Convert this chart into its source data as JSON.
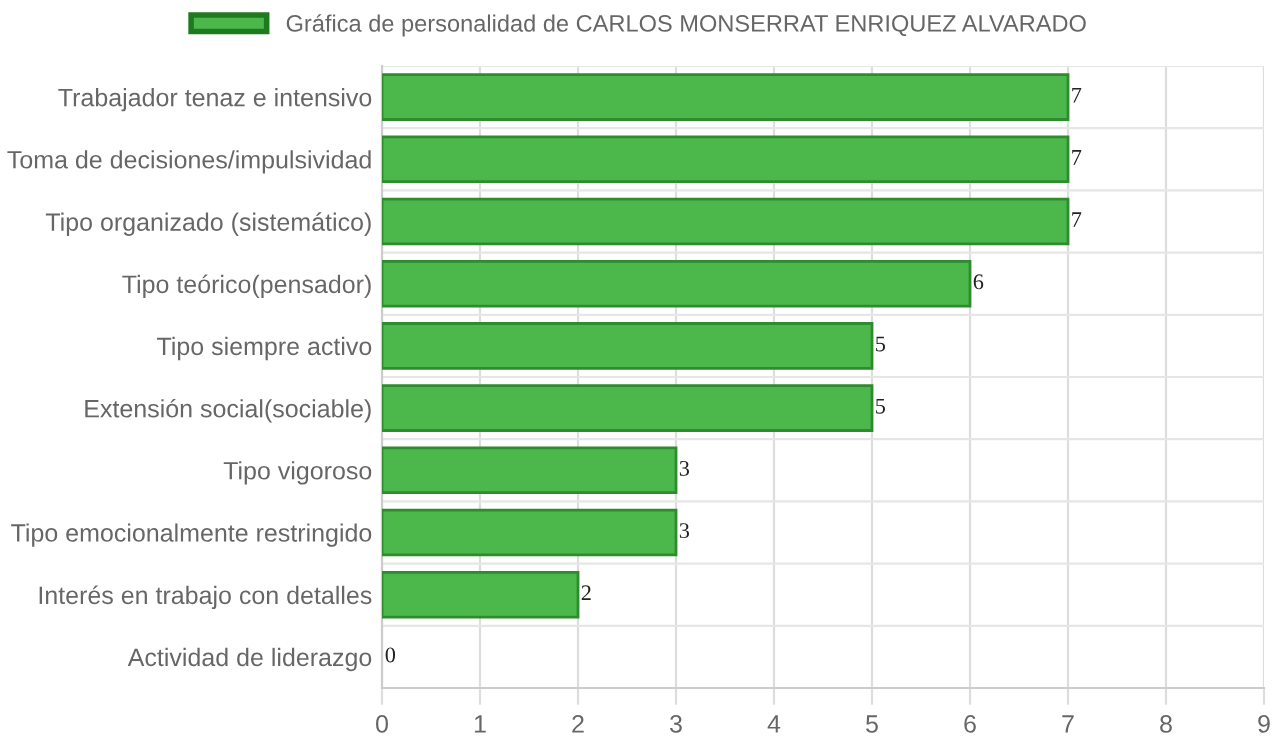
{
  "chart_data": {
    "type": "bar",
    "orientation": "horizontal",
    "categories": [
      "Trabajador tenaz e intensivo",
      "Toma de decisiones/impulsividad",
      "Tipo organizado (sistemático)",
      "Tipo teórico(pensador)",
      "Tipo siempre activo",
      "Extensión social(sociable)",
      "Tipo vigoroso",
      "Tipo emocionalmente restringido",
      "Interés en trabajo con detalles",
      "Actividad de liderazgo"
    ],
    "series": [
      {
        "name": "Gráfica de personalidad de CARLOS MONSERRAT ENRIQUEZ ALVARADO",
        "color": "#4cb84c",
        "values": [
          7,
          7,
          7,
          6,
          5,
          5,
          3,
          3,
          2,
          0
        ]
      }
    ],
    "xlim": [
      0,
      9
    ],
    "xticks": [
      0,
      1,
      2,
      3,
      4,
      5,
      6,
      7,
      8,
      9
    ],
    "grid": true,
    "legend": "top",
    "data_labels": true
  }
}
